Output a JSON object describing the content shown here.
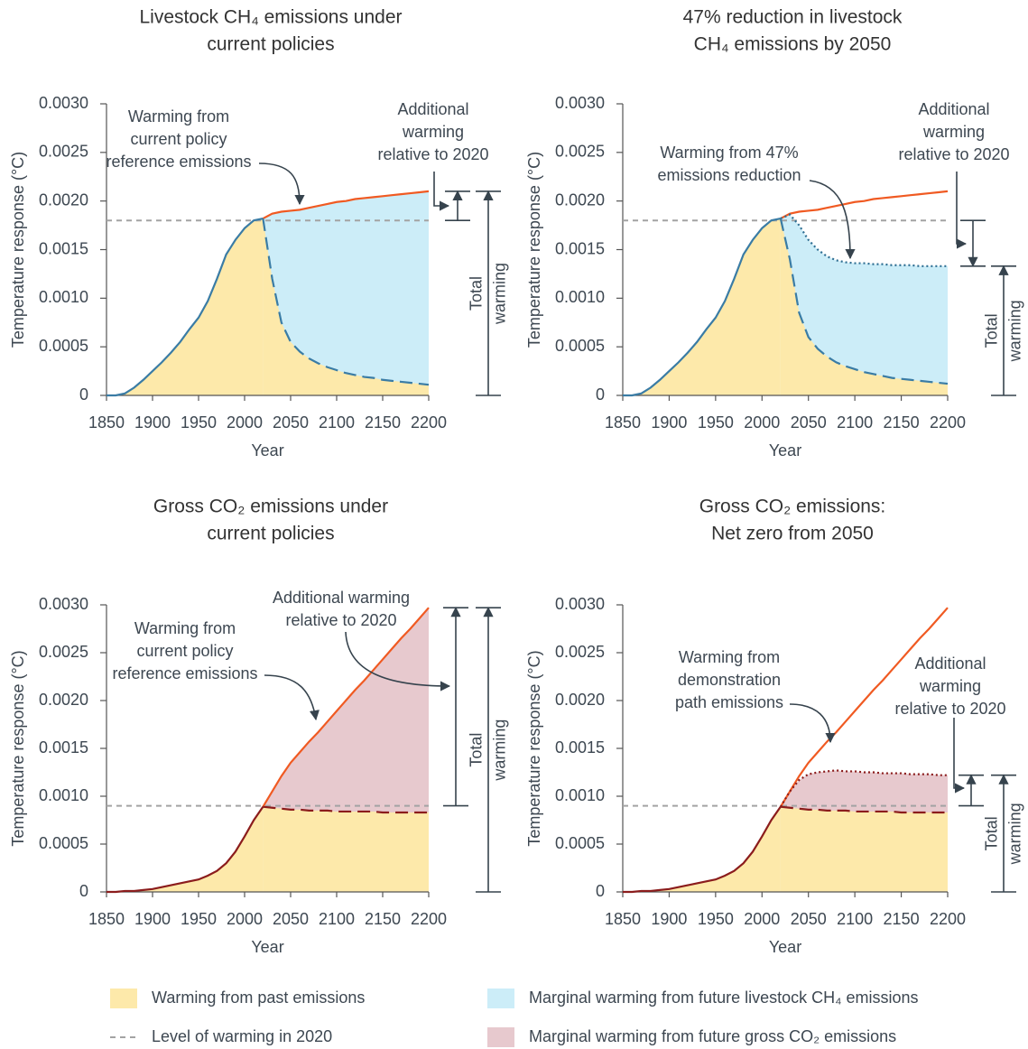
{
  "chart_data": [
    {
      "type": "area",
      "title": [
        "Livestock CH₄ emissions under",
        "current policies"
      ],
      "xlabel": "Year",
      "ylabel": "Temperature response (°C)",
      "x": [
        1850,
        1860,
        1870,
        1880,
        1890,
        1900,
        1910,
        1920,
        1930,
        1940,
        1950,
        1960,
        1970,
        1980,
        1990,
        2000,
        2010,
        2020,
        2030,
        2040,
        2050,
        2060,
        2070,
        2080,
        2090,
        2100,
        2110,
        2120,
        2130,
        2140,
        2150,
        2160,
        2170,
        2180,
        2190,
        2200
      ],
      "xlim": [
        1850,
        2200
      ],
      "ylim": [
        0,
        0.003
      ],
      "xticks": [
        1850,
        1900,
        1950,
        2000,
        2050,
        2100,
        2150,
        2200
      ],
      "yticks": [
        0,
        0.0005,
        {
          "value": 0.001,
          "label": "0.0010"
        },
        0.0015,
        {
          "value": 0.002,
          "label": "0.0020"
        },
        0.0025,
        {
          "value": 0.003,
          "label": "0.0030"
        }
      ],
      "level_2020": {
        "value": 0.0018,
        "color": "#a3a3a3"
      },
      "series": [
        {
          "color": "#f05a22",
          "dash": "solid",
          "fill": "#ccedf8",
          "values": [
            null,
            null,
            null,
            null,
            null,
            null,
            null,
            null,
            null,
            null,
            null,
            null,
            null,
            null,
            null,
            null,
            null,
            0.00182,
            0.00187,
            0.00189,
            0.0019,
            0.00191,
            0.00193,
            0.00195,
            0.00197,
            0.00199,
            0.002,
            0.00202,
            0.00203,
            0.00204,
            0.00205,
            0.00206,
            0.00207,
            0.00208,
            0.00209,
            0.0021
          ]
        },
        {
          "color": "#3a7ca5",
          "dash": "solid",
          "fill": "#fde9aa",
          "values": [
            0,
            0,
            2e-05,
            8e-05,
            0.00016,
            0.00025,
            0.00034,
            0.00044,
            0.00055,
            0.00068,
            0.0008,
            0.00097,
            0.0012,
            0.00145,
            0.0016,
            0.00172,
            0.0018,
            0.00182,
            null,
            null,
            null,
            null,
            null,
            null,
            null,
            null,
            null,
            null,
            null,
            null,
            null,
            null,
            null,
            null,
            null,
            null
          ]
        },
        {
          "color": "#3a7ca5",
          "dash": "dashed",
          "fill": "#fde9aa",
          "values": [
            null,
            null,
            null,
            null,
            null,
            null,
            null,
            null,
            null,
            null,
            null,
            null,
            null,
            null,
            null,
            null,
            null,
            0.00182,
            0.0012,
            0.00075,
            0.00055,
            0.00045,
            0.00038,
            0.00033,
            0.00029,
            0.00026,
            0.00023,
            0.00021,
            0.00019,
            0.00018,
            0.00016,
            0.00015,
            0.00014,
            0.00013,
            0.00012,
            0.00011
          ]
        }
      ],
      "annotations": [
        [
          "Warming from",
          "current policy",
          "reference emissions"
        ],
        [
          "Additional",
          "warming",
          "relative to 2020"
        ]
      ],
      "total_label": [
        "Total",
        "warming"
      ]
    },
    {
      "type": "area",
      "title": [
        "47% reduction in livestock",
        "CH₄ emissions by 2050"
      ],
      "xlabel": "Year",
      "ylabel": "Temperature response (°C)",
      "x": [
        1850,
        1860,
        1870,
        1880,
        1890,
        1900,
        1910,
        1920,
        1930,
        1940,
        1950,
        1960,
        1970,
        1980,
        1990,
        2000,
        2010,
        2020,
        2030,
        2040,
        2050,
        2060,
        2070,
        2080,
        2090,
        2100,
        2110,
        2120,
        2130,
        2140,
        2150,
        2160,
        2170,
        2180,
        2190,
        2200
      ],
      "xlim": [
        1850,
        2200
      ],
      "ylim": [
        0,
        0.003
      ],
      "xticks": [
        1850,
        1900,
        1950,
        2000,
        2050,
        2100,
        2150,
        2200
      ],
      "yticks": [
        0,
        0.0005,
        {
          "value": 0.001,
          "label": "0.0010"
        },
        0.0015,
        {
          "value": 0.002,
          "label": "0.0020"
        },
        0.0025,
        {
          "value": 0.003,
          "label": "0.0030"
        }
      ],
      "level_2020": {
        "value": 0.0018,
        "color": "#a3a3a3"
      },
      "series": [
        {
          "color": "#f05a22",
          "dash": "solid",
          "values": [
            null,
            null,
            null,
            null,
            null,
            null,
            null,
            null,
            null,
            null,
            null,
            null,
            null,
            null,
            null,
            null,
            null,
            0.00182,
            0.00187,
            0.00189,
            0.0019,
            0.00191,
            0.00193,
            0.00195,
            0.00197,
            0.00199,
            0.002,
            0.00202,
            0.00203,
            0.00204,
            0.00205,
            0.00206,
            0.00207,
            0.00208,
            0.00209,
            0.0021
          ]
        },
        {
          "color": "#2f6f93",
          "dash": "dotted",
          "fill": "#ccedf8",
          "values": [
            null,
            null,
            null,
            null,
            null,
            null,
            null,
            null,
            null,
            null,
            null,
            null,
            null,
            null,
            null,
            null,
            null,
            0.00182,
            0.00186,
            0.00175,
            0.0016,
            0.0015,
            0.00143,
            0.00139,
            0.00137,
            0.00136,
            0.00136,
            0.00135,
            0.00135,
            0.00134,
            0.00134,
            0.00134,
            0.00133,
            0.00133,
            0.00133,
            0.00133
          ]
        },
        {
          "color": "#3a7ca5",
          "dash": "solid",
          "fill": "#fde9aa",
          "values": [
            0,
            0,
            2e-05,
            8e-05,
            0.00016,
            0.00025,
            0.00034,
            0.00044,
            0.00055,
            0.00068,
            0.0008,
            0.00097,
            0.0012,
            0.00145,
            0.0016,
            0.00172,
            0.0018,
            0.00182,
            null,
            null,
            null,
            null,
            null,
            null,
            null,
            null,
            null,
            null,
            null,
            null,
            null,
            null,
            null,
            null,
            null,
            null
          ]
        },
        {
          "color": "#3a7ca5",
          "dash": "dashed",
          "fill": "#fde9aa",
          "values": [
            null,
            null,
            null,
            null,
            null,
            null,
            null,
            null,
            null,
            null,
            null,
            null,
            null,
            null,
            null,
            null,
            null,
            0.00182,
            0.0014,
            0.00085,
            0.0006,
            0.00048,
            0.0004,
            0.00034,
            0.0003,
            0.00027,
            0.00024,
            0.00022,
            0.0002,
            0.00018,
            0.00017,
            0.00016,
            0.00015,
            0.00014,
            0.00013,
            0.00012
          ]
        }
      ],
      "annotations": [
        [
          "Warming from 47%",
          "emissions reduction"
        ],
        [
          "Additional",
          "warming",
          "relative to 2020"
        ]
      ],
      "total_label": [
        "Total",
        "warming"
      ]
    },
    {
      "type": "area",
      "title": [
        "Gross CO₂ emissions under",
        "current policies"
      ],
      "xlabel": "Year",
      "ylabel": "Temperature response (°C)",
      "x": [
        1850,
        1860,
        1870,
        1880,
        1890,
        1900,
        1910,
        1920,
        1930,
        1940,
        1950,
        1960,
        1970,
        1980,
        1990,
        2000,
        2010,
        2020,
        2030,
        2040,
        2050,
        2060,
        2070,
        2080,
        2090,
        2100,
        2110,
        2120,
        2130,
        2140,
        2150,
        2160,
        2170,
        2180,
        2190,
        2200
      ],
      "xlim": [
        1850,
        2200
      ],
      "ylim": [
        0,
        0.003
      ],
      "xticks": [
        1850,
        1900,
        1950,
        2000,
        2050,
        2100,
        2150,
        2200
      ],
      "yticks": [
        0,
        0.0005,
        {
          "value": 0.001,
          "label": "0.0010"
        },
        0.0015,
        {
          "value": 0.002,
          "label": "0.0020"
        },
        0.0025,
        {
          "value": 0.003,
          "label": "0.0030"
        }
      ],
      "level_2020": {
        "value": 0.0009,
        "color": "#a3a3a3"
      },
      "series": [
        {
          "color": "#f05a22",
          "dash": "solid",
          "fill": "#e7c9ce",
          "values": [
            null,
            null,
            null,
            null,
            null,
            null,
            null,
            null,
            null,
            null,
            null,
            null,
            null,
            null,
            null,
            null,
            null,
            0.00089,
            0.00105,
            0.00121,
            0.00135,
            0.00146,
            0.00157,
            0.00167,
            0.00178,
            0.00189,
            0.002,
            0.00211,
            0.00221,
            0.00232,
            0.00243,
            0.00254,
            0.00265,
            0.00275,
            0.00286,
            0.00297
          ]
        },
        {
          "color": "#8b1c1c",
          "dash": "solid",
          "fill": "#fde9aa",
          "values": [
            0,
            0,
            1e-05,
            1e-05,
            2e-05,
            3e-05,
            5e-05,
            7e-05,
            9e-05,
            0.00011,
            0.00013,
            0.00017,
            0.00022,
            0.0003,
            0.00042,
            0.00058,
            0.00075,
            0.00089,
            null,
            null,
            null,
            null,
            null,
            null,
            null,
            null,
            null,
            null,
            null,
            null,
            null,
            null,
            null,
            null,
            null,
            null
          ]
        },
        {
          "color": "#8b1c1c",
          "dash": "dashed",
          "fill": "#fde9aa",
          "values": [
            null,
            null,
            null,
            null,
            null,
            null,
            null,
            null,
            null,
            null,
            null,
            null,
            null,
            null,
            null,
            null,
            null,
            0.00089,
            0.00088,
            0.00087,
            0.00086,
            0.00086,
            0.00085,
            0.00085,
            0.00085,
            0.00084,
            0.00084,
            0.00084,
            0.00084,
            0.00084,
            0.00083,
            0.00083,
            0.00083,
            0.00083,
            0.00083,
            0.00083
          ]
        }
      ],
      "annotations": [
        [
          "Warming from",
          "current policy",
          "reference emissions"
        ],
        [
          "Additional warming",
          "relative to 2020"
        ]
      ],
      "total_label": [
        "Total",
        "warming"
      ]
    },
    {
      "type": "area",
      "title": [
        "Gross CO₂ emissions:",
        "Net zero from 2050"
      ],
      "xlabel": "Year",
      "ylabel": "Temperature response (°C)",
      "x": [
        1850,
        1860,
        1870,
        1880,
        1890,
        1900,
        1910,
        1920,
        1930,
        1940,
        1950,
        1960,
        1970,
        1980,
        1990,
        2000,
        2010,
        2020,
        2030,
        2040,
        2050,
        2060,
        2070,
        2080,
        2090,
        2100,
        2110,
        2120,
        2130,
        2140,
        2150,
        2160,
        2170,
        2180,
        2190,
        2200
      ],
      "xlim": [
        1850,
        2200
      ],
      "ylim": [
        0,
        0.003
      ],
      "xticks": [
        1850,
        1900,
        1950,
        2000,
        2050,
        2100,
        2150,
        2200
      ],
      "yticks": [
        0,
        0.0005,
        {
          "value": 0.001,
          "label": "0.0010"
        },
        0.0015,
        {
          "value": 0.002,
          "label": "0.0020"
        },
        0.0025,
        {
          "value": 0.003,
          "label": "0.0030"
        }
      ],
      "level_2020": {
        "value": 0.0009,
        "color": "#a3a3a3"
      },
      "series": [
        {
          "color": "#f05a22",
          "dash": "solid",
          "values": [
            null,
            null,
            null,
            null,
            null,
            null,
            null,
            null,
            null,
            null,
            null,
            null,
            null,
            null,
            null,
            null,
            null,
            0.00089,
            0.00105,
            0.00121,
            0.00135,
            0.00146,
            0.00157,
            0.00167,
            0.00178,
            0.00189,
            0.002,
            0.00211,
            0.00221,
            0.00232,
            0.00243,
            0.00254,
            0.00265,
            0.00275,
            0.00286,
            0.00297
          ]
        },
        {
          "color": "#8b1c1c",
          "dash": "dotted",
          "fill": "#e7c9ce",
          "values": [
            null,
            null,
            null,
            null,
            null,
            null,
            null,
            null,
            null,
            null,
            null,
            null,
            null,
            null,
            null,
            null,
            null,
            0.00089,
            0.00105,
            0.00117,
            0.00123,
            0.00125,
            0.00126,
            0.00127,
            0.00126,
            0.00126,
            0.00125,
            0.00125,
            0.00124,
            0.00124,
            0.00124,
            0.00123,
            0.00123,
            0.00123,
            0.00122,
            0.00122
          ]
        },
        {
          "color": "#8b1c1c",
          "dash": "solid",
          "fill": "#fde9aa",
          "values": [
            0,
            0,
            1e-05,
            1e-05,
            2e-05,
            3e-05,
            5e-05,
            7e-05,
            9e-05,
            0.00011,
            0.00013,
            0.00017,
            0.00022,
            0.0003,
            0.00042,
            0.00058,
            0.00075,
            0.00089,
            null,
            null,
            null,
            null,
            null,
            null,
            null,
            null,
            null,
            null,
            null,
            null,
            null,
            null,
            null,
            null,
            null,
            null
          ]
        },
        {
          "color": "#8b1c1c",
          "dash": "dashed",
          "fill": "#fde9aa",
          "values": [
            null,
            null,
            null,
            null,
            null,
            null,
            null,
            null,
            null,
            null,
            null,
            null,
            null,
            null,
            null,
            null,
            null,
            0.00089,
            0.00088,
            0.00087,
            0.00086,
            0.00086,
            0.00085,
            0.00085,
            0.00085,
            0.00084,
            0.00084,
            0.00084,
            0.00084,
            0.00084,
            0.00083,
            0.00083,
            0.00083,
            0.00083,
            0.00083,
            0.00083
          ]
        }
      ],
      "annotations": [
        [
          "Warming from",
          "demonstration",
          "path emissions"
        ],
        [
          "Additional",
          "warming",
          "relative to 2020"
        ]
      ],
      "total_label": [
        "Total",
        "warming"
      ]
    }
  ],
  "legend": [
    {
      "label": "Warming from past emissions",
      "color": "#fde9aa",
      "kind": "swatch"
    },
    {
      "label": "Level of warming in 2020",
      "color": "#a3a3a3",
      "kind": "dash"
    },
    {
      "label": "Marginal warming from future livestock CH₄ emissions",
      "color": "#ccedf8",
      "kind": "swatch"
    },
    {
      "label": "Marginal warming from future gross CO₂ emissions",
      "color": "#e7c9ce",
      "kind": "swatch"
    }
  ]
}
